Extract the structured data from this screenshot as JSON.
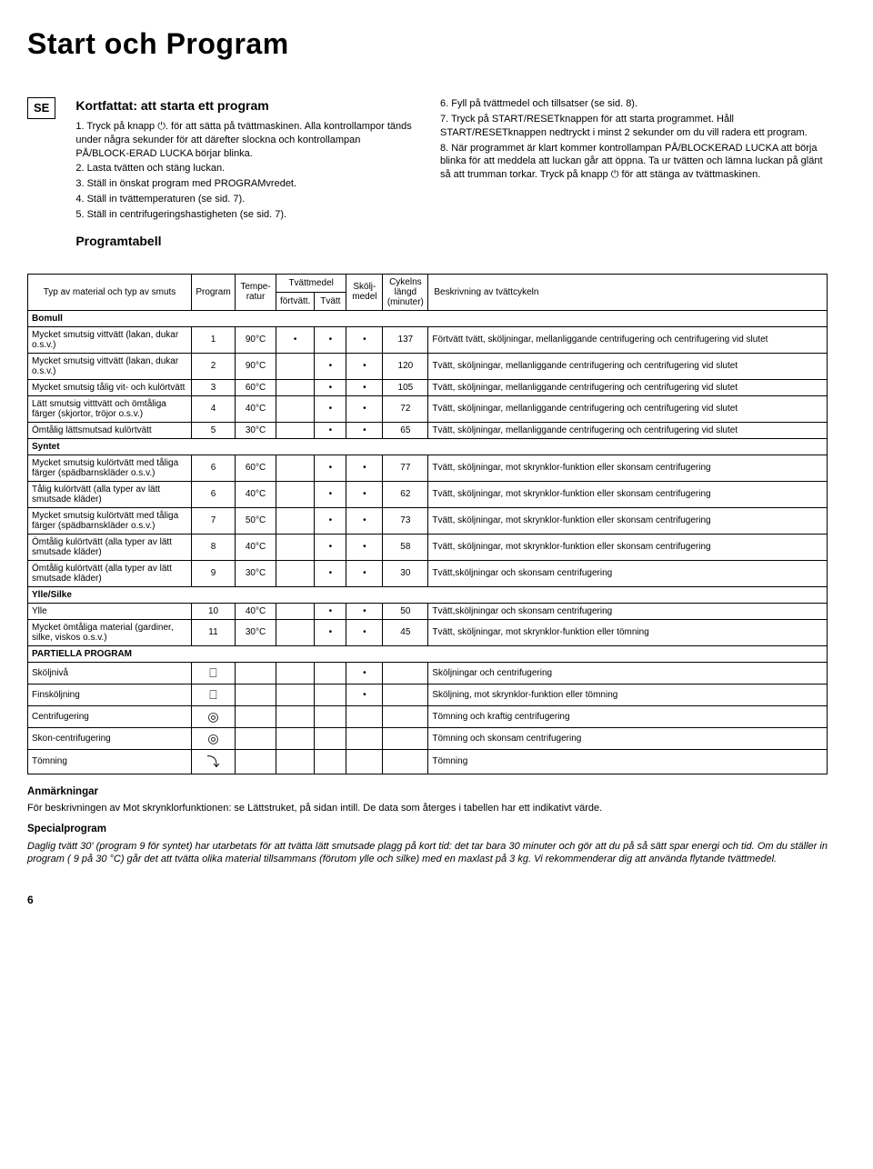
{
  "title": "Start och Program",
  "lang": "SE",
  "left_heading": "Kortfattat: att starta ett program",
  "left_steps": [
    {
      "n": "1.",
      "text": "Tryck på knapp ⏻. för att sätta på tvättmaskinen. Alla kontrollampor tänds under några sekunder för att därefter slockna och kontrollampan PÅ/BLOCK-ERAD LUCKA börjar blinka."
    },
    {
      "n": "2.",
      "text": "Lasta tvätten och stäng luckan."
    },
    {
      "n": "3.",
      "text": "Ställ in önskat program med PROGRAMvredet."
    },
    {
      "n": "4.",
      "text": "Ställ in tvättemperaturen (se sid. 7)."
    },
    {
      "n": "5.",
      "text": "Ställ in centrifugeringshastigheten (se sid. 7)."
    }
  ],
  "right_steps": [
    {
      "n": "6.",
      "text": "Fyll på tvättmedel och tillsatser (se sid. 8)."
    },
    {
      "n": "7.",
      "text": "Tryck på START/RESETknappen för att starta programmet.\nHåll START/RESETknappen nedtryckt i minst 2 sekunder om du vill radera ett program."
    },
    {
      "n": "8.",
      "text": "När programmet är klart kommer kontrollampan PÅ/BLOCKERAD LUCKA att börja blinka för att meddela att luckan går att öppna. Ta ur tvätten och lämna luckan på glänt så att trumman torkar. Tryck på knapp ⏻ för att stänga av tvättmaskinen."
    }
  ],
  "program_table_heading": "Programtabell",
  "headers": {
    "type": "Typ av material och typ av smuts",
    "program": "Program",
    "temp": "Tempe-ratur",
    "detergent": "Tvättmedel",
    "prewash": "förtvätt.",
    "wash": "Tvätt",
    "softener": "Skölj-medel",
    "duration": "Cykelns längd (minuter)",
    "desc": "Beskrivning av tvättcykeln"
  },
  "sections": [
    {
      "name": "Bomull",
      "rows": [
        {
          "type": "Mycket smutsig vittvätt (lakan, dukar o.s.v.)",
          "prog": "1",
          "temp": "90°C",
          "pre": "•",
          "wash": "•",
          "soft": "•",
          "dur": "137",
          "desc": "Förtvätt tvätt, sköljningar, mellanliggande centrifugering och centrifugering vid slutet"
        },
        {
          "type": "Mycket smutsig vittvätt (lakan, dukar o.s.v.)",
          "prog": "2",
          "temp": "90°C",
          "pre": "",
          "wash": "•",
          "soft": "•",
          "dur": "120",
          "desc": "Tvätt, sköljningar, mellanliggande centrifugering och centrifugering vid slutet"
        },
        {
          "type": "Mycket smutsig tålig vit- och kulörtvätt",
          "prog": "3",
          "temp": "60°C",
          "pre": "",
          "wash": "•",
          "soft": "•",
          "dur": "105",
          "desc": "Tvätt, sköljningar, mellanliggande centrifugering och centrifugering vid slutet"
        },
        {
          "type": "Lätt smutsig vitttvätt och ömtåliga färger (skjortor, tröjor o.s.v.)",
          "prog": "4",
          "temp": "40°C",
          "pre": "",
          "wash": "•",
          "soft": "•",
          "dur": "72",
          "desc": "Tvätt, sköljningar, mellanliggande centrifugering och centrifugering vid slutet"
        },
        {
          "type": "Ömtålig lättsmutsad kulörtvätt",
          "prog": "5",
          "temp": "30°C",
          "pre": "",
          "wash": "•",
          "soft": "•",
          "dur": "65",
          "desc": "Tvätt, sköljningar, mellanliggande centrifugering och centrifugering vid slutet"
        }
      ]
    },
    {
      "name": "Syntet",
      "rows": [
        {
          "type": "Mycket smutsig kulörtvätt med tåliga färger (spädbarnskläder o.s.v.)",
          "prog": "6",
          "temp": "60°C",
          "pre": "",
          "wash": "•",
          "soft": "•",
          "dur": "77",
          "desc": "Tvätt, sköljningar, mot skrynklor-funktion eller skonsam centrifugering"
        },
        {
          "type": "Tålig kulörtvätt (alla typer av lätt smutsade kläder)",
          "prog": "6",
          "temp": "40°C",
          "pre": "",
          "wash": "•",
          "soft": "•",
          "dur": "62",
          "desc": "Tvätt, sköljningar, mot skrynklor-funktion eller skonsam centrifugering"
        },
        {
          "type": "Mycket smutsig kulörtvätt med tåliga färger (spädbarnskläder o.s.v.)",
          "prog": "7",
          "temp": "50°C",
          "pre": "",
          "wash": "•",
          "soft": "•",
          "dur": "73",
          "desc": "Tvätt, sköljningar, mot skrynklor-funktion eller skonsam centrifugering"
        },
        {
          "type": "Ömtålig kulörtvätt (alla typer av lätt smutsade kläder)",
          "prog": "8",
          "temp": "40°C",
          "pre": "",
          "wash": "•",
          "soft": "•",
          "dur": "58",
          "desc": "Tvätt, sköljningar, mot skrynklor-funktion eller skonsam centrifugering"
        },
        {
          "type": "Ömtålig kulörtvätt (alla typer av lätt smutsade kläder)",
          "prog": "9",
          "temp": "30°C",
          "pre": "",
          "wash": "•",
          "soft": "•",
          "dur": "30",
          "desc": "Tvätt,sköljningar och skonsam centrifugering"
        }
      ]
    },
    {
      "name": "Ylle/Silke",
      "rows": [
        {
          "type": "Ylle",
          "prog": "10",
          "temp": "40°C",
          "pre": "",
          "wash": "•",
          "soft": "•",
          "dur": "50",
          "desc": "Tvätt,sköljningar och skonsam centrifugering"
        },
        {
          "type": "Mycket ömtåliga material (gardiner, silke, viskos o.s.v.)",
          "prog": "11",
          "temp": "30°C",
          "pre": "",
          "wash": "•",
          "soft": "•",
          "dur": "45",
          "desc": "Tvätt, sköljningar, mot skrynklor-funktion eller tömning"
        }
      ]
    },
    {
      "name": "PARTIELLA PROGRAM",
      "rows": [
        {
          "type": "Sköljnivå",
          "prog": "⎕",
          "temp": "",
          "pre": "",
          "wash": "",
          "soft": "•",
          "dur": "",
          "desc": "Sköljningar och centrifugering",
          "sym": true
        },
        {
          "type": "Finsköljning",
          "prog": "⎕",
          "temp": "",
          "pre": "",
          "wash": "",
          "soft": "•",
          "dur": "",
          "desc": "Sköljning, mot skrynklor-funktion eller tömning",
          "sym": true
        },
        {
          "type": "Centrifugering",
          "prog": "◎",
          "temp": "",
          "pre": "",
          "wash": "",
          "soft": "",
          "dur": "",
          "desc": "Tömning och kraftig centrifugering",
          "sym": true
        },
        {
          "type": "Skon-centrifugering",
          "prog": "◎",
          "temp": "",
          "pre": "",
          "wash": "",
          "soft": "",
          "dur": "",
          "desc": "Tömning och skonsam centrifugering",
          "sym": true
        },
        {
          "type": "Tömning",
          "prog": "⤵",
          "temp": "",
          "pre": "",
          "wash": "",
          "soft": "",
          "dur": "",
          "desc": "Tömning",
          "sym": true
        }
      ]
    }
  ],
  "notes_heading": "Anmärkningar",
  "notes_p1": "För beskrivningen av Mot skrynklorfunktionen: se Lättstruket, på sidan intill. De data som återges i tabellen har ett indikativt värde.",
  "special_heading": "Specialprogram",
  "special_p": "Daglig tvätt 30' (program 9 för syntet) har utarbetats för att tvätta lätt smutsade plagg på kort tid: det tar bara 30 minuter och gör att du på så sätt spar energi och tid. Om du ställer in program ( 9 på 30 °C) går det att tvätta olika material tillsammans (förutom ylle och silke) med en maxlast på 3 kg. Vi rekommenderar dig att använda flytande tvättmedel.",
  "page_num": "6"
}
